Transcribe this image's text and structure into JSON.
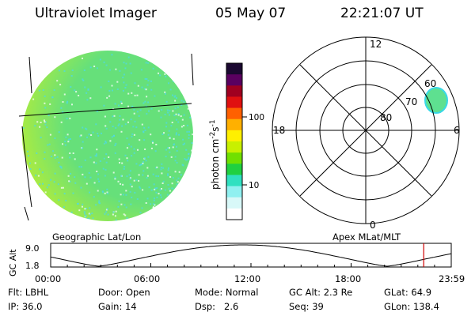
{
  "header": {
    "title": "Ultraviolet Imager",
    "date": "05 May 07",
    "time": "22:21:07 UT"
  },
  "colorbar": {
    "unit_label": "photon cm",
    "unit_sup_1": "-2",
    "unit_mid": "s",
    "unit_sup_2": "-1",
    "ticks": [
      "100",
      "10"
    ],
    "colors": [
      "#1a0830",
      "#5a0060",
      "#a00020",
      "#e01010",
      "#ff6000",
      "#ffb000",
      "#fff000",
      "#c8f000",
      "#70e000",
      "#20d040",
      "#30e0c0",
      "#90f0f0",
      "#d8f8f8",
      "#ffffff"
    ]
  },
  "left_panel": {
    "caption": "Geographic Lat/Lon",
    "fill_color": "#66e07a",
    "limb_color": "#c6f02a",
    "speckle_color": "#4fd9e6"
  },
  "polar_panel": {
    "caption": "Apex MLat/MLT",
    "mlt_labels": [
      "12",
      "18",
      "6",
      "0"
    ],
    "mlat_labels": [
      "60",
      "70",
      "80"
    ],
    "blob_color": "#5ee090",
    "blob_edge_color": "#38d8e8"
  },
  "timeline": {
    "ylabel": "GC Alt",
    "ytick_top": "9.0",
    "ytick_bottom": "1.8",
    "xticks": [
      "00:00",
      "06:00",
      "12:00",
      "18:00",
      "23:59"
    ],
    "marker_color": "#d00000"
  },
  "info": {
    "row1": [
      {
        "key": "Flt:",
        "value": "LBHL"
      },
      {
        "key": "Door:",
        "value": "Open"
      },
      {
        "key": "Mode:",
        "value": "Normal"
      },
      {
        "key": "GC Alt:",
        "value": "2.3 Re"
      },
      {
        "key": "GLat:",
        "value": "64.9"
      }
    ],
    "row2": [
      {
        "key": "IP:",
        "value": "36.0"
      },
      {
        "key": "Gain:",
        "value": "14"
      },
      {
        "key": "Dsp:",
        "value": "2.6"
      },
      {
        "key": "Seq:",
        "value": "39"
      },
      {
        "key": "GLon:",
        "value": "138.4"
      }
    ]
  }
}
